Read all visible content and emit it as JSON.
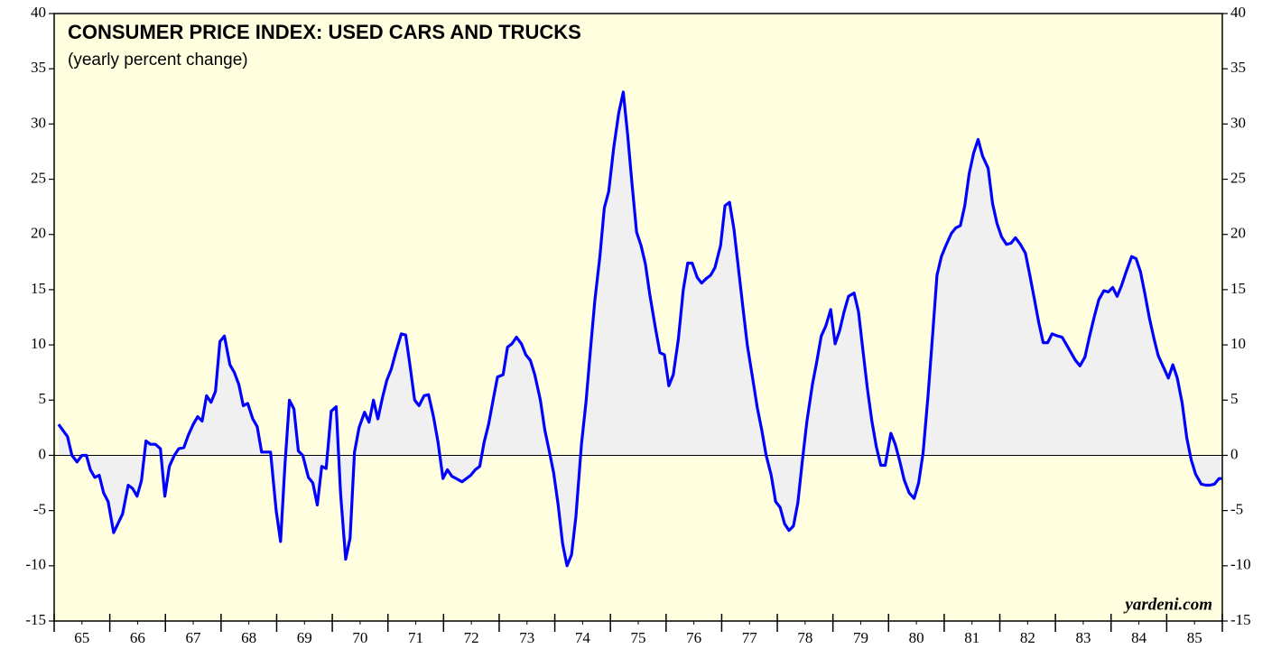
{
  "chart_data": {
    "type": "line",
    "title": "CONSUMER PRICE INDEX: USED CARS AND TRUCKS",
    "subtitle": "(yearly percent change)",
    "annotation": "yardeni.com",
    "color": "#0000ff",
    "area_color": "#f0f0f0",
    "background": "#ffffe0",
    "xlim": [
      1965,
      1986
    ],
    "xticks": [
      {
        "value": 1965.5,
        "label": "65"
      },
      {
        "value": 1966.5,
        "label": "66"
      },
      {
        "value": 1967.5,
        "label": "67"
      },
      {
        "value": 1968.5,
        "label": "68"
      },
      {
        "value": 1969.5,
        "label": "69"
      },
      {
        "value": 1970.5,
        "label": "70"
      },
      {
        "value": 1971.5,
        "label": "71"
      },
      {
        "value": 1972.5,
        "label": "72"
      },
      {
        "value": 1973.5,
        "label": "73"
      },
      {
        "value": 1974.5,
        "label": "74"
      },
      {
        "value": 1975.5,
        "label": "75"
      },
      {
        "value": 1976.5,
        "label": "76"
      },
      {
        "value": 1977.5,
        "label": "77"
      },
      {
        "value": 1978.5,
        "label": "78"
      },
      {
        "value": 1979.5,
        "label": "79"
      },
      {
        "value": 1980.5,
        "label": "80"
      },
      {
        "value": 1981.5,
        "label": "81"
      },
      {
        "value": 1982.5,
        "label": "82"
      },
      {
        "value": 1983.5,
        "label": "83"
      },
      {
        "value": 1984.5,
        "label": "84"
      },
      {
        "value": 1985.5,
        "label": "85"
      }
    ],
    "ylim": [
      -15,
      40
    ],
    "yticks": [
      -15,
      -10,
      -5,
      0,
      5,
      10,
      15,
      20,
      25,
      30,
      35,
      40
    ],
    "x": [
      1965.08,
      1965.24,
      1965.32,
      1965.41,
      1965.5,
      1965.58,
      1965.65,
      1965.73,
      1965.81,
      1965.89,
      1965.97,
      1966.07,
      1966.23,
      1966.33,
      1966.41,
      1966.49,
      1966.57,
      1966.65,
      1966.73,
      1966.82,
      1966.91,
      1966.99,
      1967.07,
      1967.16,
      1967.24,
      1967.33,
      1967.41,
      1967.5,
      1967.58,
      1967.66,
      1967.74,
      1967.82,
      1967.9,
      1967.98,
      1968.06,
      1968.16,
      1968.24,
      1968.32,
      1968.4,
      1968.48,
      1968.57,
      1968.65,
      1968.73,
      1968.89,
      1968.99,
      1969.07,
      1969.15,
      1969.23,
      1969.31,
      1969.39,
      1969.47,
      1969.57,
      1969.65,
      1969.73,
      1969.81,
      1969.89,
      1969.98,
      1970.07,
      1970.15,
      1970.24,
      1970.32,
      1970.4,
      1970.48,
      1970.58,
      1970.66,
      1970.74,
      1970.82,
      1970.9,
      1970.98,
      1971.06,
      1971.14,
      1971.24,
      1971.32,
      1971.4,
      1971.48,
      1971.56,
      1971.65,
      1971.73,
      1971.82,
      1971.9,
      1971.99,
      1972.07,
      1972.15,
      1972.23,
      1972.33,
      1972.41,
      1972.49,
      1972.57,
      1972.65,
      1972.73,
      1972.81,
      1972.89,
      1972.97,
      1973.07,
      1973.15,
      1973.23,
      1973.31,
      1973.4,
      1973.48,
      1973.56,
      1973.64,
      1973.74,
      1973.82,
      1973.9,
      1973.98,
      1974.06,
      1974.14,
      1974.22,
      1974.3,
      1974.38,
      1974.48,
      1974.56,
      1974.64,
      1974.72,
      1974.81,
      1974.89,
      1974.97,
      1975.06,
      1975.15,
      1975.23,
      1975.31,
      1975.39,
      1975.47,
      1975.55,
      1975.63,
      1975.71,
      1975.81,
      1975.89,
      1975.97,
      1976.05,
      1976.13,
      1976.22,
      1976.31,
      1976.39,
      1976.47,
      1976.56,
      1976.64,
      1976.72,
      1976.8,
      1976.88,
      1976.98,
      1977.06,
      1977.14,
      1977.22,
      1977.3,
      1977.38,
      1977.46,
      1977.55,
      1977.64,
      1977.72,
      1977.8,
      1977.89,
      1977.97,
      1978.05,
      1978.13,
      1978.21,
      1978.29,
      1978.37,
      1978.45,
      1978.53,
      1978.63,
      1978.71,
      1978.79,
      1978.87,
      1978.96,
      1979.04,
      1979.12,
      1979.2,
      1979.28,
      1979.38,
      1979.46,
      1979.54,
      1979.62,
      1979.7,
      1979.78,
      1979.86,
      1979.94,
      1980.04,
      1980.12,
      1980.2,
      1980.28,
      1980.37,
      1980.46,
      1980.54,
      1980.62,
      1980.71,
      1980.79,
      1980.87,
      1980.95,
      1981.03,
      1981.13,
      1981.21,
      1981.29,
      1981.37,
      1981.45,
      1981.53,
      1981.61,
      1981.69,
      1981.79,
      1981.87,
      1981.95,
      1982.03,
      1982.12,
      1982.2,
      1982.28,
      1982.37,
      1982.46,
      1982.54,
      1982.62,
      1982.7,
      1982.78,
      1982.86,
      1982.94,
      1983.04,
      1983.12,
      1983.2,
      1983.28,
      1983.36,
      1983.44,
      1983.53,
      1983.61,
      1983.7,
      1983.78,
      1983.87,
      1983.95,
      1984.03,
      1984.11,
      1984.19,
      1984.27,
      1984.37,
      1984.45,
      1984.53,
      1984.61,
      1984.69,
      1984.77,
      1984.85,
      1984.95,
      1985.03,
      1985.11,
      1985.19,
      1985.28,
      1985.36,
      1985.44,
      1985.52,
      1985.62,
      1985.7,
      1985.78,
      1985.86,
      1985.94,
      1985.99
    ],
    "values": [
      2.8,
      1.7,
      0.0,
      -0.6,
      0.0,
      0.0,
      -1.3,
      -2.0,
      -1.8,
      -3.4,
      -4.2,
      -7.0,
      -5.3,
      -2.7,
      -3.0,
      -3.7,
      -2.3,
      1.3,
      1.0,
      1.0,
      0.6,
      -3.7,
      -1.0,
      0.0,
      0.6,
      0.7,
      1.8,
      2.8,
      3.5,
      3.1,
      5.4,
      4.8,
      5.8,
      10.3,
      10.8,
      8.2,
      7.5,
      6.4,
      4.5,
      4.7,
      3.3,
      2.6,
      0.3,
      0.3,
      -5.0,
      -7.8,
      -0.8,
      5.0,
      4.2,
      0.4,
      0.0,
      -2.0,
      -2.5,
      -4.5,
      -1.0,
      -1.2,
      4.0,
      4.4,
      -3.5,
      -9.4,
      -7.5,
      0.3,
      2.5,
      3.9,
      3.0,
      5.0,
      3.3,
      5.2,
      6.8,
      7.8,
      9.3,
      11.0,
      10.9,
      8.0,
      5.0,
      4.5,
      5.4,
      5.5,
      3.5,
      1.2,
      -2.1,
      -1.3,
      -1.9,
      -2.1,
      -2.4,
      -2.1,
      -1.8,
      -1.3,
      -1.0,
      1.2,
      2.8,
      5.0,
      7.1,
      7.3,
      9.8,
      10.1,
      10.7,
      10.1,
      9.1,
      8.6,
      7.3,
      5.0,
      2.3,
      0.4,
      -1.6,
      -4.5,
      -8.0,
      -10.0,
      -9.0,
      -5.5,
      1.0,
      4.8,
      9.5,
      14.0,
      18.0,
      22.4,
      23.9,
      27.9,
      31.0,
      32.9,
      29.0,
      24.5,
      20.2,
      19.0,
      17.3,
      14.5,
      11.5,
      9.3,
      9.1,
      6.3,
      7.3,
      10.5,
      15.0,
      17.4,
      17.4,
      16.1,
      15.6,
      16.0,
      16.3,
      17.0,
      19.0,
      22.6,
      22.9,
      20.5,
      17.0,
      13.5,
      10.0,
      7.2,
      4.3,
      2.3,
      0.0,
      -1.8,
      -4.2,
      -4.7,
      -6.2,
      -6.8,
      -6.4,
      -4.3,
      -0.5,
      3.0,
      6.4,
      8.5,
      10.8,
      11.7,
      13.2,
      10.1,
      11.3,
      13.0,
      14.4,
      14.7,
      13.0,
      9.5,
      6.0,
      3.1,
      0.8,
      -0.9,
      -0.9,
      2.0,
      1.0,
      -0.5,
      -2.2,
      -3.4,
      -3.9,
      -2.5,
      0.2,
      5.4,
      10.8,
      16.3,
      18.0,
      19.0,
      20.1,
      20.6,
      20.8,
      22.6,
      25.5,
      27.4,
      28.6,
      27.1,
      26.0,
      22.8,
      21.0,
      19.8,
      19.1,
      19.2,
      19.7,
      19.1,
      18.3,
      16.3,
      14.2,
      12.0,
      10.2,
      10.2,
      11.0,
      10.8,
      10.7,
      10.0,
      9.3,
      8.6,
      8.1,
      8.9,
      10.7,
      12.6,
      14.1,
      14.9,
      14.8,
      15.2,
      14.4,
      15.4,
      16.6,
      18.0,
      17.8,
      16.6,
      14.6,
      12.4,
      10.6,
      9.0,
      7.9,
      7.0,
      8.2,
      7.0,
      4.7,
      1.6,
      -0.4,
      -1.7,
      -2.6,
      -2.7,
      -2.7,
      -2.6,
      -2.1,
      -2.1
    ]
  }
}
